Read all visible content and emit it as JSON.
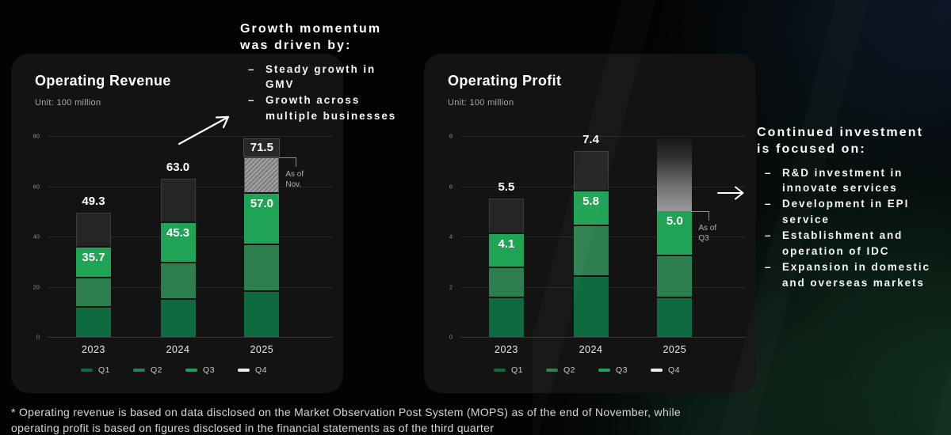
{
  "chart_data": [
    {
      "type": "bar",
      "stacked": true,
      "title": "Operating Revenue",
      "unit_label": "Unit: 100 million",
      "ylim": [
        0,
        80
      ],
      "yticks": [
        0,
        20,
        40,
        60,
        80
      ],
      "grid": true,
      "legend_position": "bottom",
      "categories": [
        "2023",
        "2024",
        "2025"
      ],
      "series": [
        {
          "name": "Q1",
          "color": "#0d6b3f",
          "values": [
            11.7,
            14.8,
            18.0
          ]
        },
        {
          "name": "Q2",
          "color": "#2e7f4f",
          "values": [
            11.6,
            14.5,
            18.6
          ]
        },
        {
          "name": "Q3",
          "color": "#1fa355",
          "values": [
            12.4,
            16.0,
            20.4
          ]
        },
        {
          "name": "Q4",
          "color": "#252526",
          "legend_color": "#ececec",
          "values": [
            13.6,
            17.7,
            14.5
          ]
        }
      ],
      "q4_variants": [
        "solid",
        "solid",
        "hatched"
      ],
      "segment_labels": [
        {
          "category": "2023",
          "text": "35.7",
          "at": 35.7
        },
        {
          "category": "2024",
          "text": "45.3",
          "at": 45.3
        },
        {
          "category": "2025",
          "text": "57.0",
          "at": 57.0
        }
      ],
      "total_labels": [
        {
          "category": "2023",
          "text": "49.3",
          "at": 49.3,
          "style": "plain"
        },
        {
          "category": "2024",
          "text": "63.0",
          "at": 63.0,
          "style": "plain"
        },
        {
          "category": "2025",
          "text": "71.5",
          "at": 71.5,
          "style": "boxed"
        }
      ],
      "callout": {
        "category": "2025",
        "at": 71.5,
        "text": "As of\nNov."
      }
    },
    {
      "type": "bar",
      "stacked": true,
      "title": "Operating Profit",
      "unit_label": "Unit: 100 million",
      "ylim": [
        0,
        8
      ],
      "yticks": [
        0,
        2,
        4,
        6,
        8
      ],
      "grid": true,
      "legend_position": "bottom",
      "categories": [
        "2023",
        "2024",
        "2025"
      ],
      "series": [
        {
          "name": "Q1",
          "color": "#0d6b3f",
          "values": [
            1.55,
            2.4,
            1.55
          ]
        },
        {
          "name": "Q2",
          "color": "#2e7f4f",
          "values": [
            1.2,
            2.0,
            1.65
          ]
        },
        {
          "name": "Q3",
          "color": "#1fa355",
          "values": [
            1.35,
            1.4,
            1.8
          ]
        },
        {
          "name": "Q4",
          "color": "#252526",
          "legend_color": "#ececec",
          "values": [
            1.4,
            1.6,
            2.9
          ]
        }
      ],
      "q4_variants": [
        "solid",
        "solid",
        "fade"
      ],
      "segment_labels": [
        {
          "category": "2023",
          "text": "4.1",
          "at": 4.1
        },
        {
          "category": "2024",
          "text": "5.8",
          "at": 5.8
        },
        {
          "category": "2025",
          "text": "5.0",
          "at": 5.0
        }
      ],
      "total_labels": [
        {
          "category": "2023",
          "text": "5.5",
          "at": 5.5,
          "style": "plain"
        },
        {
          "category": "2024",
          "text": "7.4",
          "at": 7.4,
          "style": "plain"
        }
      ],
      "callout": {
        "category": "2025",
        "at": 5.0,
        "text": "As of\nQ3"
      }
    }
  ],
  "annotations": {
    "left": {
      "title": "Growth momentum\nwas driven by:",
      "bullets": [
        "Steady growth in GMV",
        "Growth across multiple businesses"
      ]
    },
    "right": {
      "title": "Continued investment\nis focused on:",
      "bullets": [
        "R&D investment in innovate services",
        "Development in EPI service",
        "Establishment and operation of IDC",
        "Expansion in domestic and overseas markets"
      ]
    }
  },
  "footnote": {
    "line1": "* Operating revenue is based on data disclosed on the Market Observation Post System (MOPS) as of the end of November, while",
    "line2": "operating profit is based on figures disclosed in the financial statements as of the third quarter"
  },
  "colors": {
    "q1": "#0d6b3f",
    "q2": "#2e7f4f",
    "q3": "#1fa355",
    "q4_bar": "#252526",
    "q4_legend": "#ececec",
    "card_bg": "#131314",
    "page_bg": "#030303"
  }
}
